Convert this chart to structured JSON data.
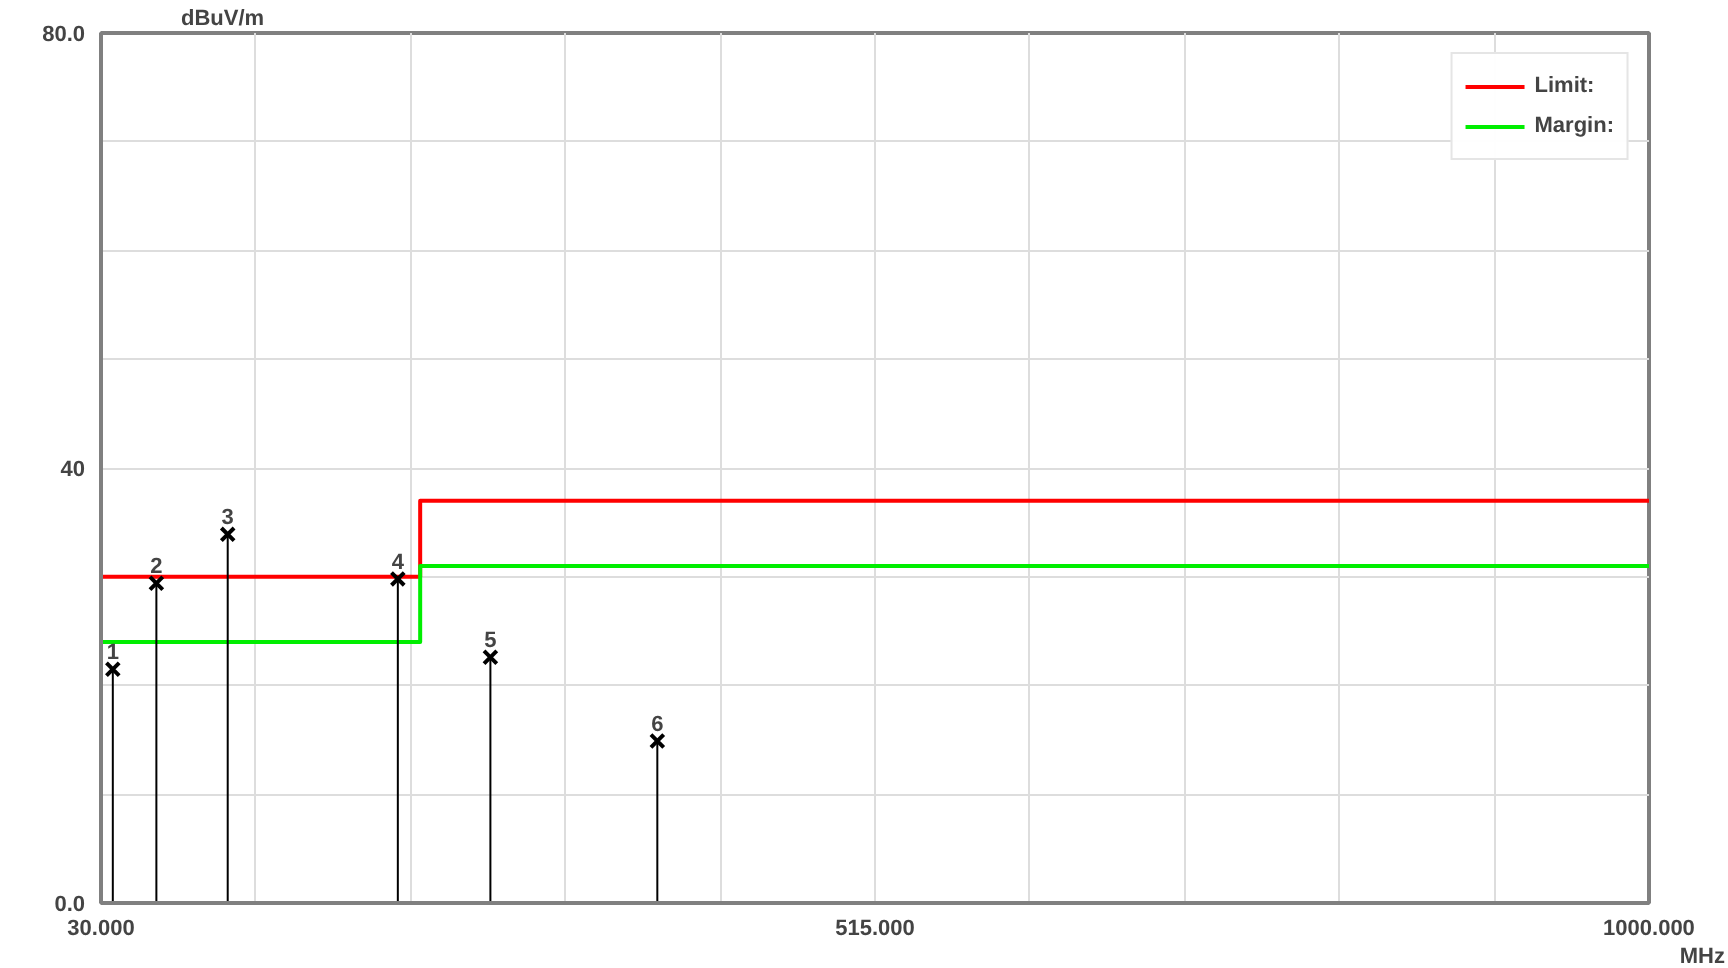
{
  "chart_data": {
    "type": "lollipop",
    "xlabel": "MHz",
    "ylabel": "dBuV/m",
    "xlim": [
      30,
      1000
    ],
    "ylim": [
      0,
      80
    ],
    "xticks": [
      {
        "value": 30,
        "label": "30.000"
      },
      {
        "value": 127,
        "label": null
      },
      {
        "value": 224,
        "label": null
      },
      {
        "value": 321,
        "label": null
      },
      {
        "value": 418,
        "label": null
      },
      {
        "value": 515,
        "label": "515.000"
      },
      {
        "value": 612,
        "label": null
      },
      {
        "value": 709,
        "label": null
      },
      {
        "value": 806,
        "label": null
      },
      {
        "value": 903,
        "label": null
      },
      {
        "value": 1000,
        "label": "1000.000"
      }
    ],
    "yticks": [
      {
        "value": 0,
        "label": "0.0"
      },
      {
        "value": 10,
        "label": null
      },
      {
        "value": 20,
        "label": null
      },
      {
        "value": 30,
        "label": null
      },
      {
        "value": 40,
        "label": "40"
      },
      {
        "value": 50,
        "label": null
      },
      {
        "value": 60,
        "label": null
      },
      {
        "value": 70,
        "label": null
      },
      {
        "value": 80,
        "label": "80.0"
      }
    ],
    "grid": true,
    "legend": "top right",
    "series": [
      {
        "name": "Limit:",
        "type": "step",
        "color": "#ff0000",
        "x": [
          30,
          230,
          1000
        ],
        "values": [
          30,
          37,
          37
        ]
      },
      {
        "name": "Margin:",
        "type": "step",
        "color": "#00ee00",
        "x": [
          30,
          230,
          1000
        ],
        "values": [
          24,
          31,
          31
        ]
      },
      {
        "color": "#000000",
        "marker": "cross",
        "x": [
          37.4,
          64.7,
          109.4,
          216,
          274,
          378.6
        ],
        "values": [
          21.5,
          29.4,
          33.9,
          29.8,
          22.6,
          14.9
        ]
      }
    ],
    "annotations": [
      {
        "text": "1",
        "x": 37.4,
        "y": 21.5
      },
      {
        "text": "2",
        "x": 64.7,
        "y": 29.4
      },
      {
        "text": "3",
        "x": 109.4,
        "y": 33.9
      },
      {
        "text": "4",
        "x": 216,
        "y": 29.8
      },
      {
        "text": "5",
        "x": 274,
        "y": 22.6
      },
      {
        "text": "6",
        "x": 378.6,
        "y": 14.9
      }
    ]
  }
}
